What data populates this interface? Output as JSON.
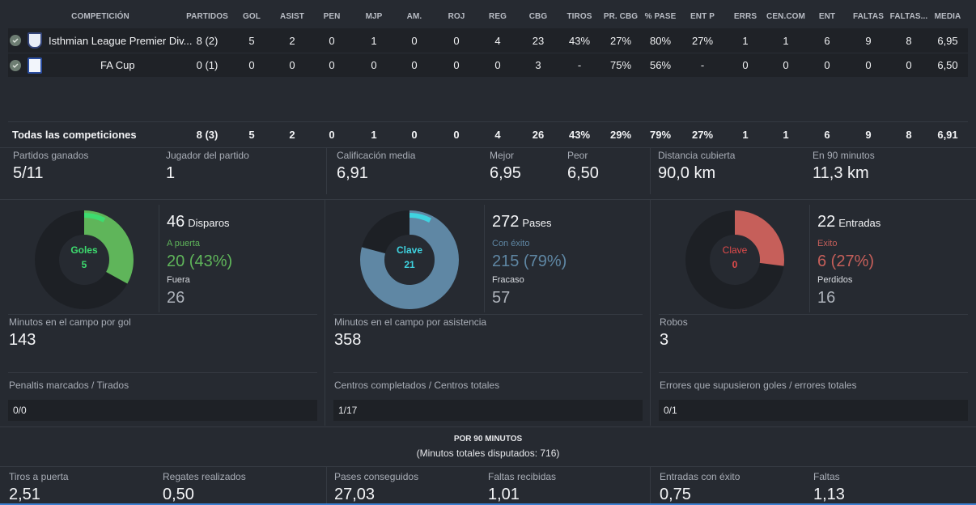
{
  "colors": {
    "goals": "#5fb55a",
    "goals_text": "#3ddc6f",
    "passes": "#5f87a4",
    "passes_key": "#3fd3e0",
    "tackles": "#c65f5a",
    "tackles_text": "#e14b4b",
    "ring_bg": "#1d2025"
  },
  "table": {
    "headers": [
      "COMPETICIÓN",
      "PARTIDOS",
      "GOL",
      "ASIST",
      "PEN",
      "MJP",
      "AM.",
      "ROJ",
      "REG",
      "CBG",
      "TIROS",
      "PR. CBG",
      "% PASE",
      "ENT P",
      "ERRS",
      "CEN.COM",
      "ENT",
      "FALTAS",
      "FALTAS...",
      "MEDIA"
    ],
    "rows": [
      {
        "name": "Isthmian League Premier Div...",
        "crest_icon": "club-crest-icon",
        "values": [
          "8 (2)",
          "5",
          "2",
          "0",
          "1",
          "0",
          "0",
          "4",
          "23",
          "43%",
          "27%",
          "80%",
          "27%",
          "1",
          "1",
          "6",
          "9",
          "8",
          "6,95"
        ]
      },
      {
        "name": "FA Cup",
        "crest_icon": "fa-crest-icon",
        "values": [
          "0 (1)",
          "0",
          "0",
          "0",
          "0",
          "0",
          "0",
          "0",
          "3",
          "-",
          "75%",
          "56%",
          "-",
          "0",
          "0",
          "0",
          "0",
          "0",
          "6,50"
        ]
      }
    ],
    "total": {
      "name": "Todas las competiciones",
      "values": [
        "8 (3)",
        "5",
        "2",
        "0",
        "1",
        "0",
        "0",
        "4",
        "26",
        "43%",
        "29%",
        "79%",
        "27%",
        "1",
        "1",
        "6",
        "9",
        "8",
        "6,91"
      ]
    }
  },
  "summary": {
    "won_label": "Partidos ganados",
    "won_value": "5/11",
    "motm_label": "Jugador del partido",
    "motm_value": "1",
    "avg_label": "Calificación media",
    "avg_value": "6,91",
    "best_label": "Mejor",
    "best_value": "6,95",
    "worst_label": "Peor",
    "worst_value": "6,50",
    "dist_label": "Distancia cubierta",
    "dist_value": "90,0 km",
    "per90_label": "En 90 minutos",
    "per90_value": "11,3 km"
  },
  "shots": {
    "ring_label": "Goles",
    "ring_value": "5",
    "ring_fraction": 0.192,
    "ring_accent_fraction": 0.075,
    "total": "46",
    "unit": "Disparos",
    "on_label": "A puerta",
    "on_value": "20 (43%)",
    "off_label": "Fuera",
    "off_value": "26",
    "mins_label": "Minutos en el campo por gol",
    "mins_value": "143",
    "pens_label": "Penaltis marcados / Tirados",
    "pens_value": "0/0"
  },
  "passes": {
    "ring_label": "Clave",
    "ring_value": "21",
    "ring_fraction": 0.79,
    "ring_accent_fraction": 0.077,
    "total": "272",
    "unit": "Pases",
    "ok_label": "Con éxito",
    "ok_value": "215 (79%)",
    "fail_label": "Fracaso",
    "fail_value": "57",
    "mins_label": "Minutos en el campo por asistencia",
    "mins_value": "358",
    "cross_label": "Centros completados / Centros totales",
    "cross_value": "1/17"
  },
  "tackles": {
    "ring_label": "Clave",
    "ring_value": "0",
    "ring_fraction": 0.27,
    "ring_accent_fraction": 0,
    "total": "22",
    "unit": "Entradas",
    "ok_label": "Exito",
    "ok_value": "6 (27%)",
    "lost_label": "Perdidos",
    "lost_value": "16",
    "steals_label": "Robos",
    "steals_value": "3",
    "errors_label": "Errores que supusieron goles / errores totales",
    "errors_value": "0/1"
  },
  "per90": {
    "title": "POR 90 MINUTOS",
    "subtitle": "(Minutos totales disputados: 716)",
    "items": [
      {
        "label": "Tiros a puerta",
        "value": "2,51"
      },
      {
        "label": "Regates realizados",
        "value": "0,50"
      },
      {
        "label": "Pases conseguidos",
        "value": "27,03"
      },
      {
        "label": "Faltas recibidas",
        "value": "1,01"
      },
      {
        "label": "Entradas con éxito",
        "value": "0,75"
      },
      {
        "label": "Faltas",
        "value": "1,13"
      }
    ]
  }
}
